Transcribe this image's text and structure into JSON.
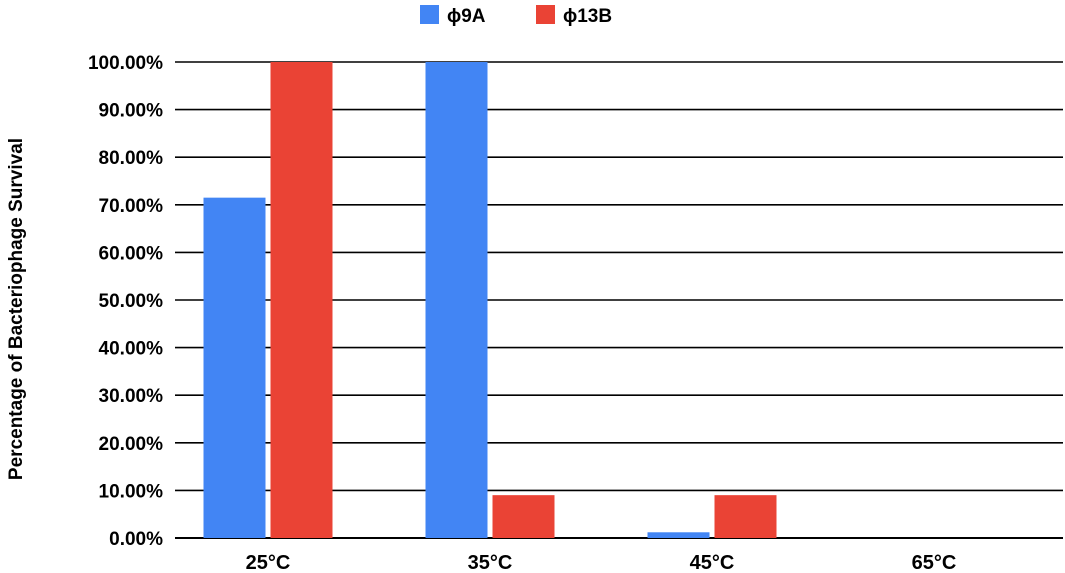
{
  "chart_data": {
    "type": "bar",
    "title": "",
    "xlabel": "",
    "ylabel": "Percentage of Bacteriophage Survival",
    "categories": [
      "25°C",
      "35°C",
      "45°C",
      "65°C"
    ],
    "series": [
      {
        "name": "ϕ9A",
        "color": "#4285f4",
        "values": [
          71.5,
          100,
          1.2,
          0
        ]
      },
      {
        "name": "ϕ13B",
        "color": "#ea4335",
        "values": [
          100,
          9,
          9,
          0
        ]
      }
    ],
    "ylim": [
      0,
      100
    ],
    "yticks": [
      0,
      10,
      20,
      30,
      40,
      50,
      60,
      70,
      80,
      90,
      100
    ],
    "ytick_labels": [
      "0.00%",
      "10.00%",
      "20.00%",
      "30.00%",
      "40.00%",
      "50.00%",
      "60.00%",
      "70.00%",
      "80.00%",
      "90.00%",
      "100.00%"
    ],
    "grid": true,
    "legend_position": "top-center"
  }
}
